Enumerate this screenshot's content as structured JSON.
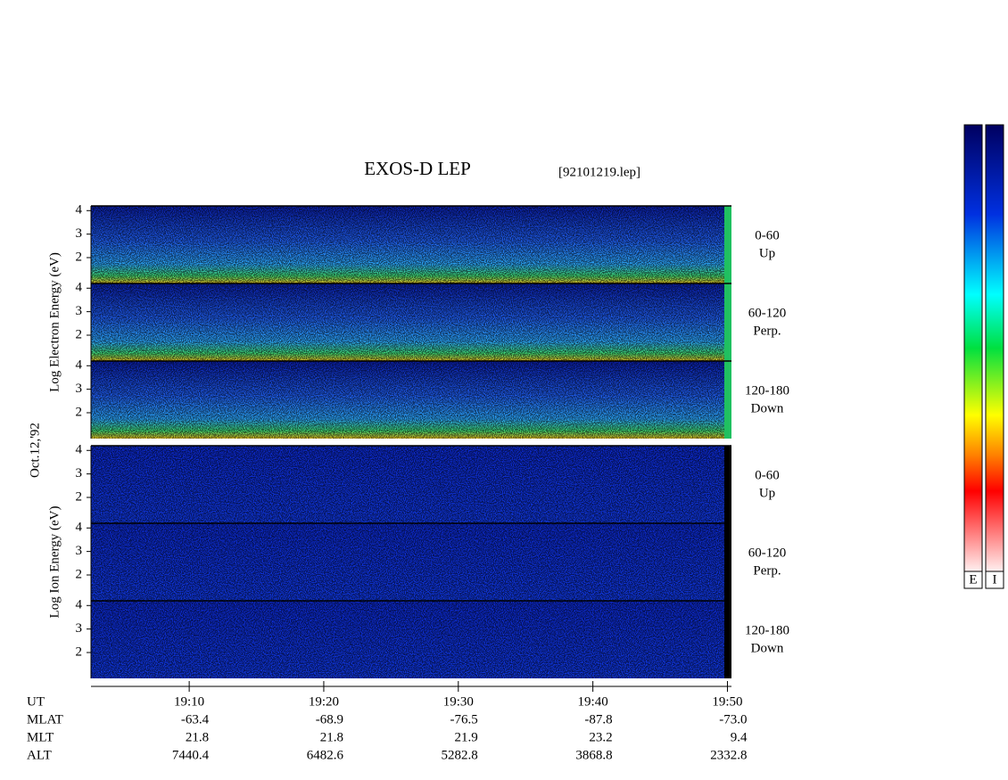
{
  "chart_data": {
    "type": "spectrogram",
    "title": "EXOS-D LEP",
    "subtitle": "[92101219.lep]",
    "date_label": "Oct.12,'92",
    "xlim": [
      2.7,
      50.3
    ],
    "xticks": [
      {
        "value": 10,
        "label": "19:10"
      },
      {
        "value": 20,
        "label": "19:20"
      },
      {
        "value": 30,
        "label": "19:30"
      },
      {
        "value": 40,
        "label": "19:40"
      },
      {
        "value": 50,
        "label": "19:50"
      }
    ],
    "groups": [
      {
        "ylabel": "Log Electron Energy (eV)",
        "ylim": [
          0.9,
          4.2
        ],
        "yticks": [
          2,
          3,
          4
        ],
        "panels": [
          {
            "angle": "0-60",
            "direction": "Up"
          },
          {
            "angle": "60-120",
            "direction": "Perp."
          },
          {
            "angle": "120-180",
            "direction": "Down"
          }
        ]
      },
      {
        "ylabel": "Log Ion Energy (eV)",
        "ylim": [
          0.9,
          4.2
        ],
        "yticks": [
          2,
          3,
          4
        ],
        "panels": [
          {
            "angle": "0-60",
            "direction": "Up"
          },
          {
            "angle": "60-120",
            "direction": "Perp."
          },
          {
            "angle": "120-180",
            "direction": "Down"
          }
        ]
      }
    ],
    "ephemeris": [
      {
        "name": "UT"
      },
      {
        "name": "MLAT",
        "values": [
          "-63.4",
          "-68.9",
          "-76.5",
          "-87.8",
          "-73.0"
        ]
      },
      {
        "name": "MLT",
        "values": [
          "21.8",
          "21.8",
          "21.9",
          "23.2",
          "9.4"
        ]
      },
      {
        "name": "ALT",
        "values": [
          "7440.4",
          "6482.6",
          "5282.8",
          "3868.8",
          "2332.8"
        ]
      }
    ],
    "colorbars": [
      "E",
      "I"
    ]
  }
}
